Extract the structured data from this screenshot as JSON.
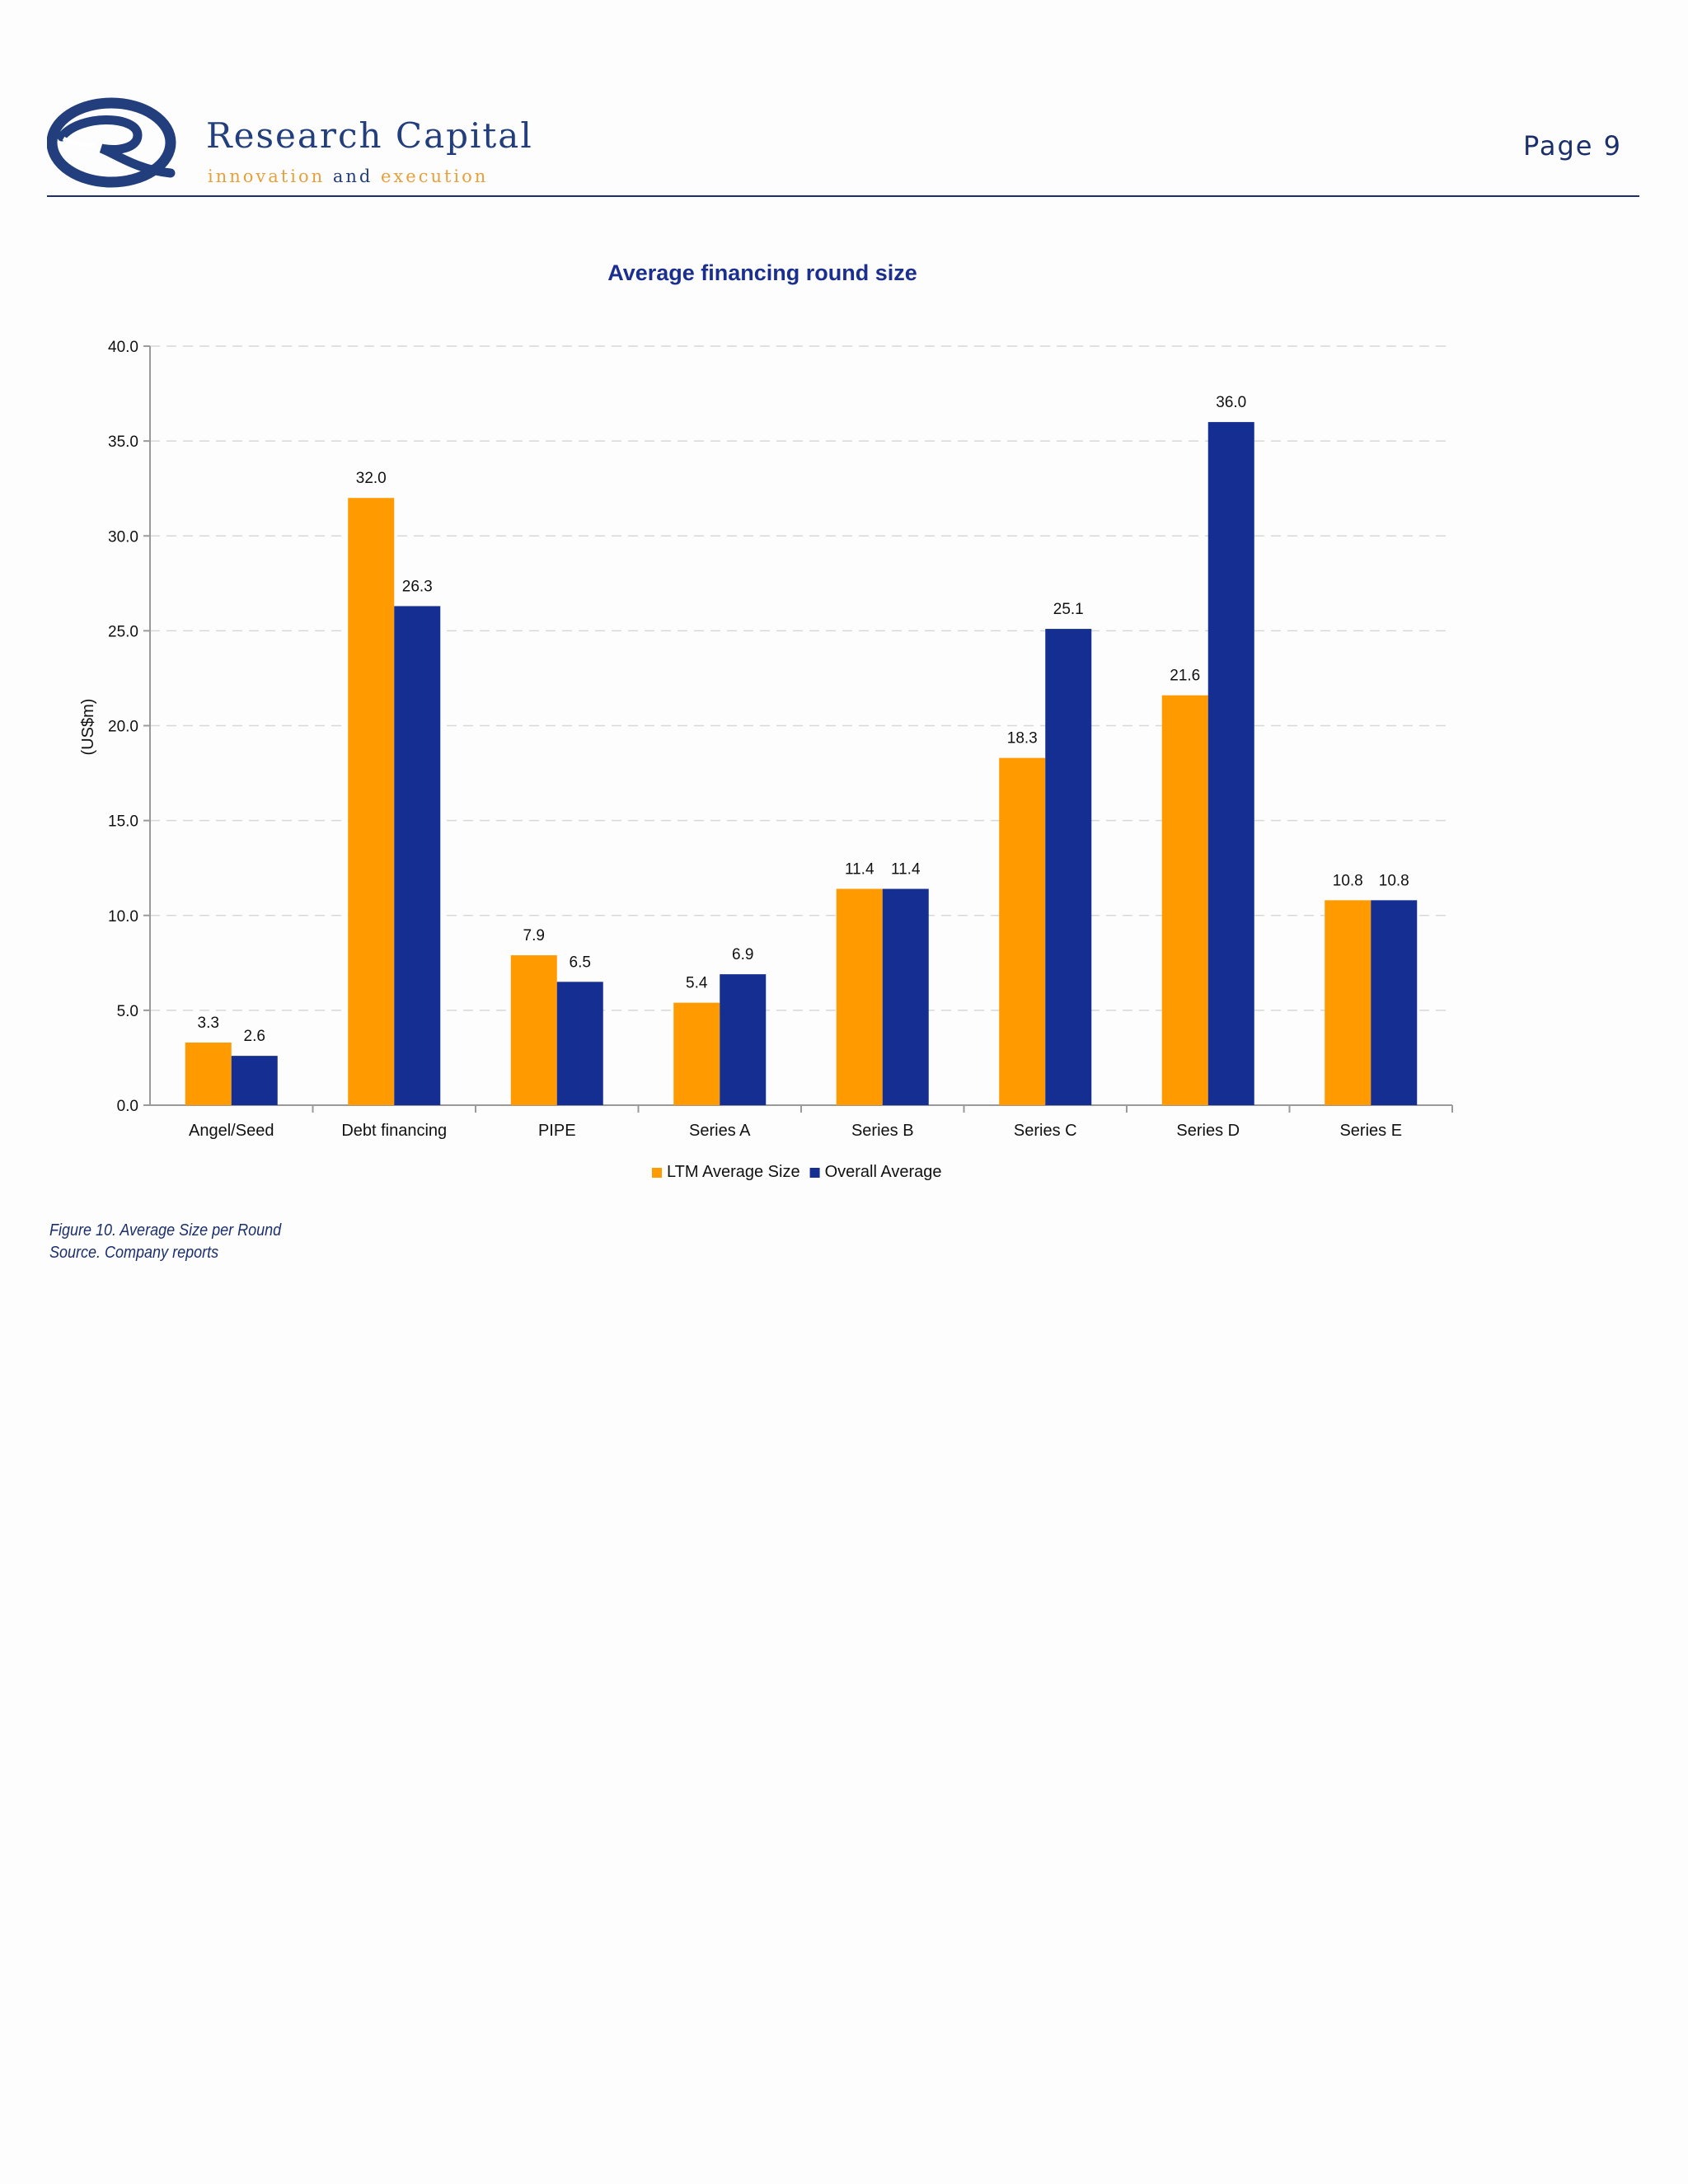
{
  "header": {
    "brand_name": "Research Capital",
    "tagline": {
      "word1": "innovation",
      "word2": "and",
      "word3": "execution"
    },
    "page_label": "Page 9"
  },
  "chart_data": {
    "type": "bar",
    "title": "Average financing round size",
    "ylabel": "(US$m)",
    "xlabel": "",
    "ylim": [
      0,
      40
    ],
    "yticks": [
      "0.0",
      "5.0",
      "10.0",
      "15.0",
      "20.0",
      "25.0",
      "30.0",
      "35.0",
      "40.0"
    ],
    "grid": true,
    "legend_position": "bottom",
    "categories": [
      "Angel/Seed",
      "Debt financing",
      "PIPE",
      "Series A",
      "Series B",
      "Series C",
      "Series D",
      "Series E"
    ],
    "series": [
      {
        "name": "LTM Average Size",
        "color": "#ff9a00",
        "values": [
          3.3,
          32.0,
          7.9,
          5.4,
          11.4,
          18.3,
          21.6,
          10.8
        ],
        "labels": [
          "3.3",
          "32.0",
          "7.9",
          "5.4",
          "11.4",
          "18.3",
          "21.6",
          "10.8"
        ]
      },
      {
        "name": "Overall Average",
        "color": "#152e92",
        "values": [
          2.6,
          26.3,
          6.5,
          6.9,
          11.4,
          25.1,
          36.0,
          10.8
        ],
        "labels": [
          "2.6",
          "26.3",
          "6.5",
          "6.9",
          "11.4",
          "25.1",
          "36.0",
          "10.8"
        ]
      }
    ]
  },
  "caption": {
    "figure": "Figure 10. Average Size per Round",
    "source": "Source. Company reports"
  },
  "colors": {
    "brand_navy": "#223e7c",
    "brand_orange": "#e6a03c",
    "title_blue": "#1b2f8f"
  }
}
